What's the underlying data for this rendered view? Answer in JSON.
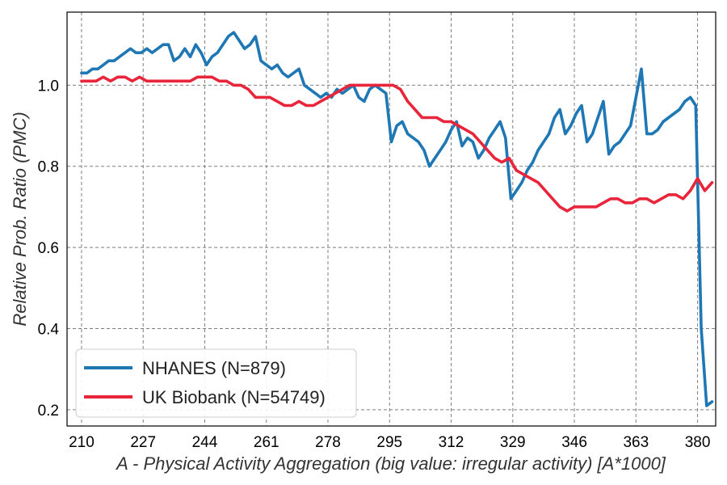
{
  "chart_data": {
    "type": "line",
    "xlabel": "A - Physical Activity Aggregation (big value: irregular activity) [A*1000]",
    "ylabel": "Relative Prob. Ratio (PMC)",
    "xlim": [
      206,
      385
    ],
    "ylim": [
      0.16,
      1.18
    ],
    "xticks": [
      210,
      227,
      244,
      261,
      278,
      295,
      312,
      329,
      346,
      363,
      380
    ],
    "yticks": [
      0.2,
      0.4,
      0.6,
      0.8,
      1.0
    ],
    "ytick_labels": [
      "0.2",
      "0.4",
      "0.6",
      "0.8",
      "1.0"
    ],
    "grid": true,
    "legend_position": "lower-left",
    "series": [
      {
        "name": "NHANES (N=879)",
        "color": "#1f77b4",
        "x": [
          210,
          211.5,
          213,
          214.5,
          216,
          217.5,
          219,
          220.5,
          222,
          223.5,
          225,
          226.5,
          228,
          229.5,
          231,
          232.5,
          234,
          235.5,
          237,
          238.5,
          240,
          241.5,
          243,
          244.5,
          246,
          247.5,
          249,
          250.5,
          252,
          253.5,
          255,
          256.5,
          258,
          259.5,
          261,
          262.5,
          264,
          265.5,
          267,
          268.5,
          270,
          271.5,
          273,
          274.5,
          276,
          277.5,
          279,
          280.5,
          282,
          283.5,
          285,
          286.5,
          288,
          289.5,
          291,
          292.5,
          294,
          295.5,
          297,
          298.5,
          300,
          301.5,
          303,
          304.5,
          306,
          307.5,
          309,
          310.5,
          312,
          313.5,
          315,
          316.5,
          318,
          319.5,
          321,
          322.5,
          324,
          325.5,
          327,
          328.5,
          330,
          331.5,
          333,
          334.5,
          336,
          337.5,
          339,
          340.5,
          342,
          343.5,
          345,
          346.5,
          348,
          349.5,
          351,
          352.5,
          354,
          355.5,
          357,
          358.5,
          360,
          361.5,
          363,
          364.5,
          366,
          367.5,
          369,
          370.5,
          372,
          373.5,
          375,
          376.5,
          378,
          379.5,
          381,
          382.5,
          384
        ],
        "y": [
          1.03,
          1.03,
          1.04,
          1.04,
          1.05,
          1.06,
          1.06,
          1.07,
          1.08,
          1.09,
          1.08,
          1.08,
          1.09,
          1.08,
          1.09,
          1.1,
          1.1,
          1.06,
          1.07,
          1.09,
          1.07,
          1.1,
          1.08,
          1.05,
          1.07,
          1.08,
          1.1,
          1.12,
          1.13,
          1.11,
          1.09,
          1.1,
          1.12,
          1.06,
          1.05,
          1.04,
          1.05,
          1.03,
          1.02,
          1.03,
          1.04,
          1.0,
          0.99,
          0.98,
          0.97,
          0.98,
          0.97,
          0.99,
          0.98,
          0.99,
          1.0,
          0.97,
          0.96,
          0.99,
          1.0,
          0.99,
          0.98,
          0.86,
          0.9,
          0.91,
          0.88,
          0.87,
          0.86,
          0.84,
          0.8,
          0.82,
          0.84,
          0.86,
          0.89,
          0.91,
          0.85,
          0.87,
          0.86,
          0.82,
          0.84,
          0.87,
          0.89,
          0.91,
          0.87,
          0.72,
          0.74,
          0.76,
          0.79,
          0.81,
          0.84,
          0.86,
          0.88,
          0.92,
          0.94,
          0.88,
          0.9,
          0.93,
          0.95,
          0.86,
          0.88,
          0.92,
          0.96,
          0.83,
          0.85,
          0.86,
          0.88,
          0.9,
          0.97,
          1.04,
          0.88,
          0.88,
          0.89,
          0.91,
          0.92,
          0.93,
          0.94,
          0.96,
          0.97,
          0.95,
          0.4,
          0.21,
          0.22
        ]
      },
      {
        "name": "UK Biobank (N=54749)",
        "color": "#e8253b",
        "x": [
          210,
          212,
          214,
          216,
          218,
          220,
          222,
          224,
          226,
          228,
          230,
          232,
          234,
          236,
          238,
          240,
          242,
          244,
          246,
          248,
          250,
          252,
          254,
          256,
          258,
          260,
          262,
          264,
          266,
          268,
          270,
          272,
          274,
          276,
          278,
          280,
          282,
          284,
          286,
          288,
          290,
          292,
          294,
          296,
          298,
          300,
          302,
          304,
          306,
          308,
          310,
          312,
          314,
          316,
          318,
          320,
          322,
          324,
          326,
          328,
          330,
          332,
          334,
          336,
          338,
          340,
          342,
          344,
          346,
          348,
          350,
          352,
          354,
          356,
          358,
          360,
          362,
          364,
          366,
          368,
          370,
          372,
          374,
          376,
          378,
          380,
          382,
          384
        ],
        "y": [
          1.01,
          1.01,
          1.01,
          1.02,
          1.01,
          1.02,
          1.02,
          1.01,
          1.02,
          1.01,
          1.01,
          1.01,
          1.01,
          1.01,
          1.01,
          1.01,
          1.02,
          1.02,
          1.02,
          1.01,
          1.01,
          1.0,
          1.0,
          0.99,
          0.97,
          0.97,
          0.97,
          0.96,
          0.95,
          0.95,
          0.96,
          0.95,
          0.95,
          0.96,
          0.97,
          0.98,
          0.99,
          1.0,
          1.0,
          1.0,
          1.0,
          1.0,
          1.0,
          1.0,
          0.99,
          0.96,
          0.94,
          0.92,
          0.92,
          0.92,
          0.91,
          0.91,
          0.9,
          0.89,
          0.88,
          0.86,
          0.84,
          0.82,
          0.81,
          0.82,
          0.79,
          0.78,
          0.77,
          0.76,
          0.74,
          0.72,
          0.7,
          0.69,
          0.7,
          0.7,
          0.7,
          0.7,
          0.71,
          0.72,
          0.72,
          0.71,
          0.71,
          0.72,
          0.72,
          0.71,
          0.72,
          0.73,
          0.73,
          0.72,
          0.74,
          0.77,
          0.74,
          0.76
        ]
      }
    ]
  }
}
